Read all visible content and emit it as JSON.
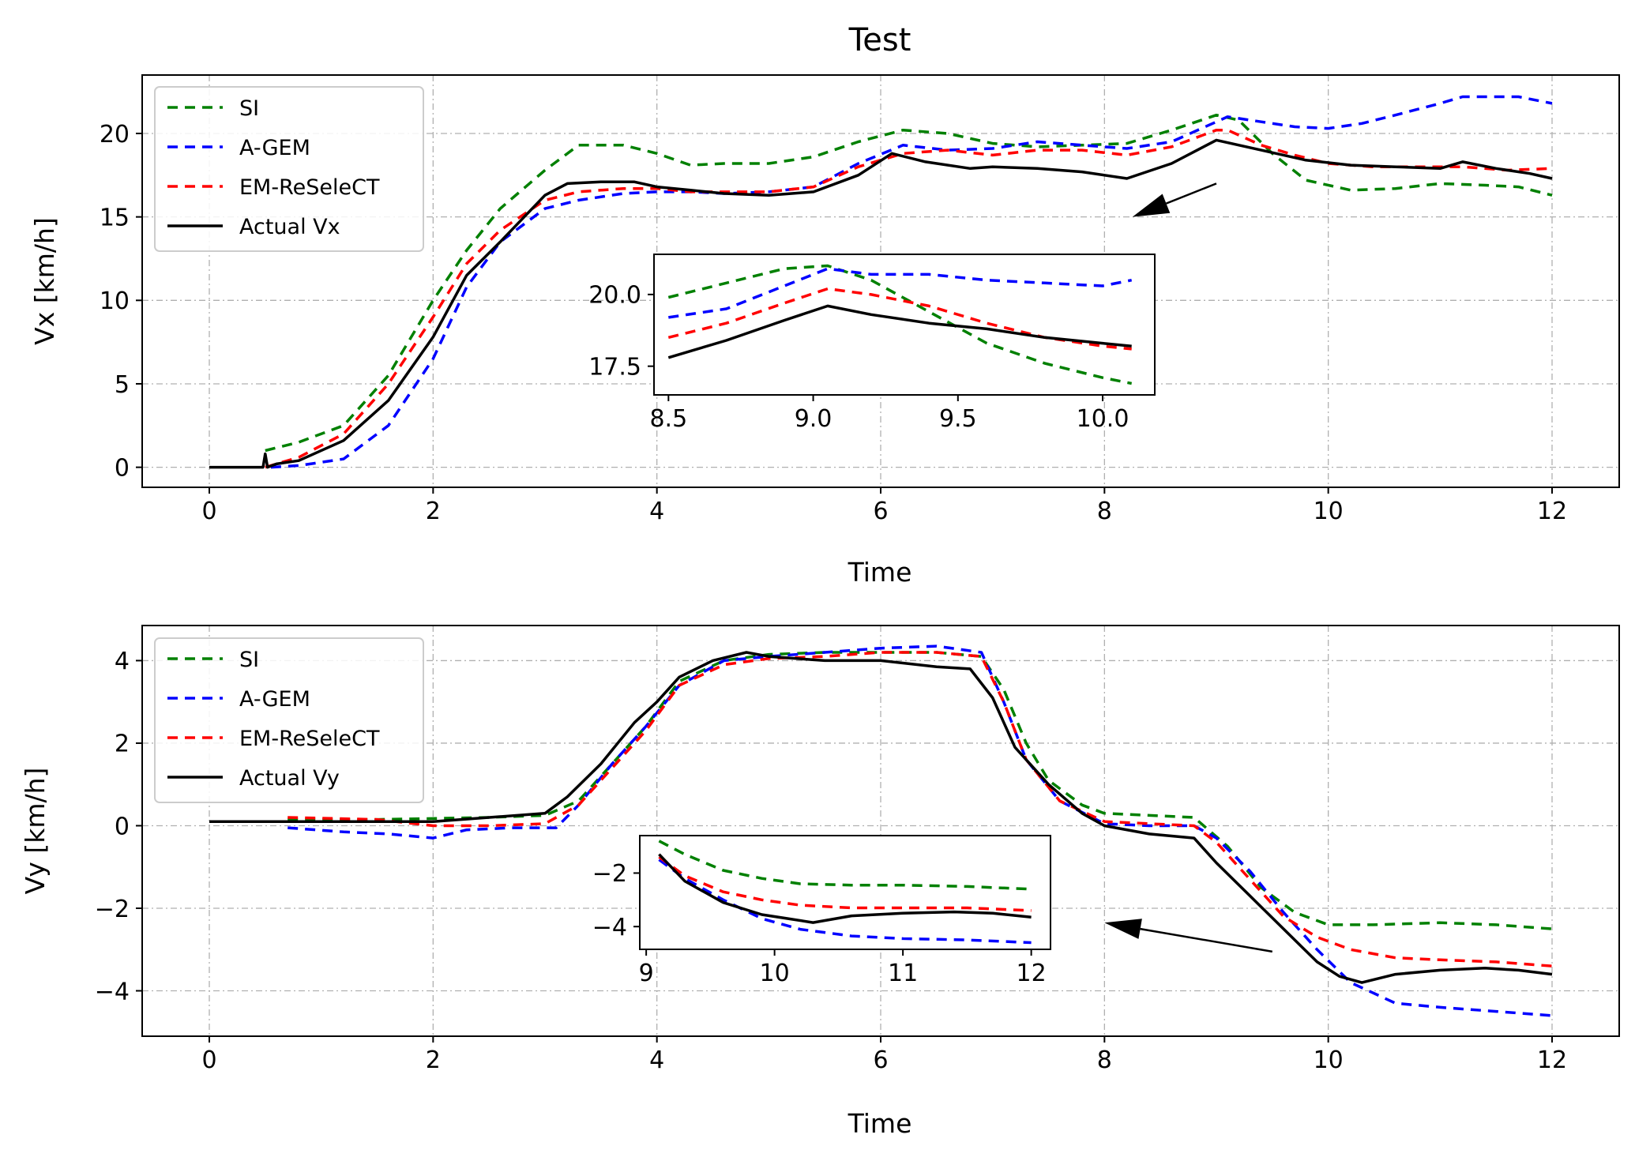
{
  "chart_data": [
    {
      "type": "line",
      "title": "Test",
      "xlabel": "Time",
      "ylabel": "Vx [km/h]",
      "xlim": [
        -0.6,
        12.6
      ],
      "ylim": [
        -1.2,
        23.5
      ],
      "xticks": [
        0,
        2,
        4,
        6,
        8,
        10,
        12
      ],
      "xtick_labels": [
        "0",
        "2",
        "4",
        "6",
        "8",
        "10",
        "12"
      ],
      "yticks": [
        0,
        5,
        10,
        15,
        20
      ],
      "ytick_labels": [
        "0",
        "5",
        "10",
        "15",
        "20"
      ],
      "grid": true,
      "legend_position": "top-left",
      "series": [
        {
          "name": "SI",
          "color": "#008000",
          "dash": "dashed",
          "x": [
            0.5,
            0.8,
            1.2,
            1.6,
            2.0,
            2.3,
            2.6,
            3.0,
            3.3,
            3.7,
            4.0,
            4.3,
            4.6,
            5.0,
            5.4,
            5.8,
            6.2,
            6.6,
            7.0,
            7.4,
            7.8,
            8.2,
            8.6,
            9.0,
            9.2,
            9.5,
            9.8,
            10.2,
            10.6,
            11.0,
            11.4,
            11.7,
            12.0
          ],
          "y": [
            1.0,
            1.5,
            2.5,
            5.5,
            10.0,
            13.0,
            15.5,
            17.8,
            19.3,
            19.3,
            18.8,
            18.1,
            18.2,
            18.2,
            18.6,
            19.5,
            20.2,
            20.0,
            19.4,
            19.2,
            19.3,
            19.4,
            20.2,
            21.1,
            20.8,
            18.8,
            17.2,
            16.6,
            16.7,
            17.0,
            16.9,
            16.8,
            16.3
          ]
        },
        {
          "name": "A-GEM",
          "color": "#0000ff",
          "dash": "dashed",
          "x": [
            0.55,
            0.8,
            1.2,
            1.6,
            2.0,
            2.3,
            2.6,
            3.0,
            3.3,
            3.7,
            4.0,
            4.3,
            4.6,
            5.0,
            5.4,
            5.8,
            6.2,
            6.6,
            7.0,
            7.4,
            7.8,
            8.2,
            8.6,
            9.0,
            9.1,
            9.4,
            9.7,
            10.0,
            10.3,
            10.6,
            11.0,
            11.2,
            11.5,
            11.7,
            12.0
          ],
          "y": [
            0.0,
            0.1,
            0.5,
            2.5,
            6.5,
            10.8,
            13.5,
            15.5,
            16.0,
            16.4,
            16.5,
            16.5,
            16.4,
            16.5,
            16.8,
            18.2,
            19.3,
            19.0,
            19.1,
            19.5,
            19.3,
            19.1,
            19.5,
            20.7,
            21.0,
            20.7,
            20.4,
            20.3,
            20.6,
            21.1,
            21.8,
            22.2,
            22.2,
            22.2,
            21.8
          ]
        },
        {
          "name": "EM-ReSeleCT",
          "color": "#ff0000",
          "dash": "dashed",
          "x": [
            0.5,
            0.8,
            1.2,
            1.6,
            2.0,
            2.3,
            2.6,
            3.0,
            3.3,
            3.7,
            4.0,
            4.3,
            4.6,
            5.0,
            5.4,
            5.8,
            6.2,
            6.6,
            7.0,
            7.4,
            7.8,
            8.2,
            8.6,
            9.0,
            9.1,
            9.4,
            9.7,
            10.0,
            10.4,
            10.8,
            11.2,
            11.6,
            12.0
          ],
          "y": [
            0.0,
            0.6,
            2.0,
            5.0,
            9.0,
            12.2,
            14.2,
            16.0,
            16.5,
            16.7,
            16.7,
            16.5,
            16.5,
            16.5,
            16.8,
            18.0,
            18.8,
            19.0,
            18.7,
            19.0,
            19.0,
            18.7,
            19.2,
            20.2,
            20.2,
            19.3,
            18.7,
            18.2,
            18.0,
            18.0,
            18.0,
            17.8,
            17.9
          ]
        },
        {
          "name": "Actual Vx",
          "color": "#000000",
          "dash": "solid",
          "x": [
            0.0,
            0.2,
            0.4,
            0.48,
            0.5,
            0.52,
            0.6,
            0.8,
            1.2,
            1.6,
            2.0,
            2.3,
            2.6,
            3.0,
            3.2,
            3.5,
            3.8,
            4.0,
            4.3,
            4.6,
            5.0,
            5.4,
            5.8,
            6.1,
            6.4,
            6.8,
            7.0,
            7.4,
            7.8,
            8.2,
            8.6,
            9.0,
            9.4,
            9.8,
            10.2,
            10.6,
            11.0,
            11.2,
            11.5,
            11.8,
            12.0
          ],
          "y": [
            0.0,
            0.0,
            0.0,
            0.0,
            0.8,
            0.0,
            0.2,
            0.4,
            1.6,
            4.0,
            7.8,
            11.5,
            13.5,
            16.3,
            17.0,
            17.1,
            17.1,
            16.8,
            16.6,
            16.4,
            16.3,
            16.5,
            17.5,
            18.8,
            18.3,
            17.9,
            18.0,
            17.9,
            17.7,
            17.3,
            18.2,
            19.6,
            19.0,
            18.4,
            18.1,
            18.0,
            17.9,
            18.3,
            17.9,
            17.6,
            17.3
          ]
        }
      ],
      "annotation": {
        "type": "arrow",
        "from": [
          9.0,
          17.0
        ],
        "to": [
          8.25,
          15.0
        ]
      },
      "inset": {
        "xlim": [
          8.45,
          10.18
        ],
        "ylim": [
          16.5,
          21.4
        ],
        "xticks": [
          8.5,
          9.0,
          9.5,
          10.0
        ],
        "xtick_labels": [
          "8.5",
          "9.0",
          "9.5",
          "10.0"
        ],
        "yticks": [
          17.5,
          20.0
        ],
        "ytick_labels": [
          "17.5",
          "20.0"
        ],
        "series": [
          {
            "name": "SI",
            "color": "#008000",
            "dash": "dashed",
            "x": [
              8.5,
              8.7,
              8.9,
              9.05,
              9.2,
              9.4,
              9.6,
              9.8,
              10.0,
              10.1
            ],
            "y": [
              19.9,
              20.4,
              20.9,
              21.0,
              20.5,
              19.4,
              18.3,
              17.6,
              17.1,
              16.9
            ]
          },
          {
            "name": "A-GEM",
            "color": "#0000ff",
            "dash": "dashed",
            "x": [
              8.5,
              8.7,
              8.9,
              9.05,
              9.2,
              9.4,
              9.6,
              9.8,
              10.0,
              10.1
            ],
            "y": [
              19.2,
              19.5,
              20.3,
              20.9,
              20.7,
              20.7,
              20.5,
              20.4,
              20.3,
              20.5
            ]
          },
          {
            "name": "EM-ReSeleCT",
            "color": "#ff0000",
            "dash": "dashed",
            "x": [
              8.5,
              8.7,
              8.9,
              9.05,
              9.2,
              9.4,
              9.6,
              9.8,
              10.0,
              10.1
            ],
            "y": [
              18.5,
              19.0,
              19.7,
              20.2,
              20.0,
              19.6,
              19.0,
              18.5,
              18.2,
              18.1
            ]
          },
          {
            "name": "Actual Vx",
            "color": "#000000",
            "dash": "solid",
            "x": [
              8.5,
              8.7,
              8.9,
              9.05,
              9.2,
              9.4,
              9.6,
              9.8,
              10.0,
              10.1
            ],
            "y": [
              17.8,
              18.4,
              19.1,
              19.6,
              19.3,
              19.0,
              18.8,
              18.5,
              18.3,
              18.2
            ]
          }
        ]
      }
    },
    {
      "type": "line",
      "title": "",
      "xlabel": "Time",
      "ylabel": "Vy [km/h]",
      "xlim": [
        -0.6,
        12.6
      ],
      "ylim": [
        -5.1,
        4.85
      ],
      "xticks": [
        0,
        2,
        4,
        6,
        8,
        10,
        12
      ],
      "xtick_labels": [
        "0",
        "2",
        "4",
        "6",
        "8",
        "10",
        "12"
      ],
      "yticks": [
        -4,
        -2,
        0,
        2,
        4
      ],
      "ytick_labels": [
        "−4",
        "−2",
        "0",
        "2",
        "4"
      ],
      "grid": true,
      "legend_position": "top-left",
      "series": [
        {
          "name": "SI",
          "color": "#008000",
          "dash": "dashed",
          "x": [
            0.7,
            1.5,
            2.5,
            3.0,
            3.3,
            3.6,
            3.9,
            4.2,
            4.6,
            5.0,
            5.5,
            6.0,
            6.5,
            6.9,
            7.1,
            7.3,
            7.5,
            7.8,
            8.0,
            8.4,
            8.8,
            9.1,
            9.4,
            9.7,
            10.0,
            10.4,
            11.0,
            11.5,
            12.0
          ],
          "y": [
            0.15,
            0.15,
            0.2,
            0.25,
            0.6,
            1.5,
            2.4,
            3.5,
            4.0,
            4.15,
            4.2,
            4.2,
            4.2,
            4.1,
            3.3,
            2.0,
            1.1,
            0.5,
            0.3,
            0.25,
            0.2,
            -0.5,
            -1.5,
            -2.1,
            -2.4,
            -2.4,
            -2.35,
            -2.4,
            -2.5
          ]
        },
        {
          "name": "A-GEM",
          "color": "#0000ff",
          "dash": "dashed",
          "x": [
            0.7,
            1.2,
            1.6,
            2.0,
            2.3,
            2.7,
            3.1,
            3.3,
            3.6,
            3.9,
            4.2,
            4.6,
            5.0,
            5.5,
            6.0,
            6.5,
            6.9,
            7.1,
            7.3,
            7.6,
            8.0,
            8.4,
            8.8,
            9.0,
            9.3,
            9.6,
            9.9,
            10.2,
            10.6,
            11.0,
            11.5,
            12.0
          ],
          "y": [
            -0.05,
            -0.15,
            -0.2,
            -0.3,
            -0.1,
            -0.05,
            -0.05,
            0.5,
            1.5,
            2.4,
            3.4,
            4.0,
            4.1,
            4.2,
            4.3,
            4.35,
            4.2,
            3.0,
            1.6,
            0.6,
            0.05,
            0.0,
            0.0,
            -0.3,
            -1.1,
            -2.1,
            -3.0,
            -3.8,
            -4.3,
            -4.4,
            -4.5,
            -4.6
          ]
        },
        {
          "name": "EM-ReSeleCT",
          "color": "#ff0000",
          "dash": "dashed",
          "x": [
            0.7,
            1.5,
            2.0,
            2.5,
            3.0,
            3.3,
            3.6,
            3.9,
            4.2,
            4.6,
            5.0,
            5.5,
            6.0,
            6.5,
            6.9,
            7.1,
            7.3,
            7.6,
            8.0,
            8.4,
            8.8,
            9.0,
            9.3,
            9.6,
            9.9,
            10.2,
            10.6,
            11.0,
            11.5,
            12.0
          ],
          "y": [
            0.2,
            0.15,
            0.0,
            0.0,
            0.05,
            0.5,
            1.4,
            2.3,
            3.4,
            3.9,
            4.05,
            4.1,
            4.2,
            4.2,
            4.1,
            3.0,
            1.6,
            0.6,
            0.1,
            0.05,
            0.0,
            -0.4,
            -1.3,
            -2.2,
            -2.7,
            -3.0,
            -3.2,
            -3.25,
            -3.3,
            -3.4
          ]
        },
        {
          "name": "Actual Vy",
          "color": "#000000",
          "dash": "solid",
          "x": [
            0.0,
            1.0,
            2.0,
            2.5,
            3.0,
            3.2,
            3.5,
            3.8,
            4.0,
            4.2,
            4.5,
            4.8,
            5.0,
            5.5,
            6.0,
            6.5,
            6.8,
            7.0,
            7.2,
            7.5,
            7.8,
            8.0,
            8.4,
            8.8,
            9.0,
            9.3,
            9.6,
            9.9,
            10.1,
            10.3,
            10.6,
            11.0,
            11.4,
            11.7,
            12.0
          ],
          "y": [
            0.1,
            0.1,
            0.1,
            0.2,
            0.3,
            0.7,
            1.5,
            2.5,
            3.0,
            3.6,
            4.0,
            4.2,
            4.1,
            4.0,
            4.0,
            3.85,
            3.8,
            3.1,
            1.9,
            1.0,
            0.3,
            0.0,
            -0.2,
            -0.3,
            -0.9,
            -1.7,
            -2.5,
            -3.3,
            -3.65,
            -3.8,
            -3.6,
            -3.5,
            -3.45,
            -3.5,
            -3.6
          ]
        }
      ],
      "annotation": {
        "type": "arrow",
        "from": [
          9.5,
          -3.05
        ],
        "to": [
          8.0,
          -2.35
        ]
      },
      "inset": {
        "xlim": [
          8.95,
          12.15
        ],
        "ylim": [
          -4.85,
          -0.6
        ],
        "xticks": [
          9,
          10,
          11,
          12
        ],
        "xtick_labels": [
          "9",
          "10",
          "11",
          "12"
        ],
        "yticks": [
          -4,
          -2
        ],
        "ytick_labels": [
          "−4",
          "−2"
        ],
        "series": [
          {
            "name": "SI",
            "color": "#008000",
            "dash": "dashed",
            "x": [
              9.1,
              9.3,
              9.6,
              9.9,
              10.2,
              10.6,
              11.0,
              11.5,
              12.0
            ],
            "y": [
              -0.8,
              -1.3,
              -1.9,
              -2.2,
              -2.4,
              -2.45,
              -2.45,
              -2.5,
              -2.6
            ]
          },
          {
            "name": "A-GEM",
            "color": "#0000ff",
            "dash": "dashed",
            "x": [
              9.1,
              9.3,
              9.6,
              9.9,
              10.2,
              10.6,
              11.0,
              11.5,
              12.0
            ],
            "y": [
              -1.5,
              -2.2,
              -3.0,
              -3.7,
              -4.1,
              -4.35,
              -4.45,
              -4.5,
              -4.6
            ]
          },
          {
            "name": "EM-ReSeleCT",
            "color": "#ff0000",
            "dash": "dashed",
            "x": [
              9.1,
              9.3,
              9.6,
              9.9,
              10.2,
              10.6,
              11.0,
              11.5,
              12.0
            ],
            "y": [
              -1.4,
              -2.1,
              -2.7,
              -3.0,
              -3.2,
              -3.3,
              -3.3,
              -3.3,
              -3.4
            ]
          },
          {
            "name": "Actual Vy",
            "color": "#000000",
            "dash": "solid",
            "x": [
              9.1,
              9.3,
              9.6,
              9.9,
              10.1,
              10.3,
              10.6,
              11.0,
              11.4,
              11.7,
              12.0
            ],
            "y": [
              -1.3,
              -2.3,
              -3.1,
              -3.55,
              -3.7,
              -3.85,
              -3.6,
              -3.5,
              -3.45,
              -3.5,
              -3.65
            ]
          }
        ]
      }
    }
  ]
}
